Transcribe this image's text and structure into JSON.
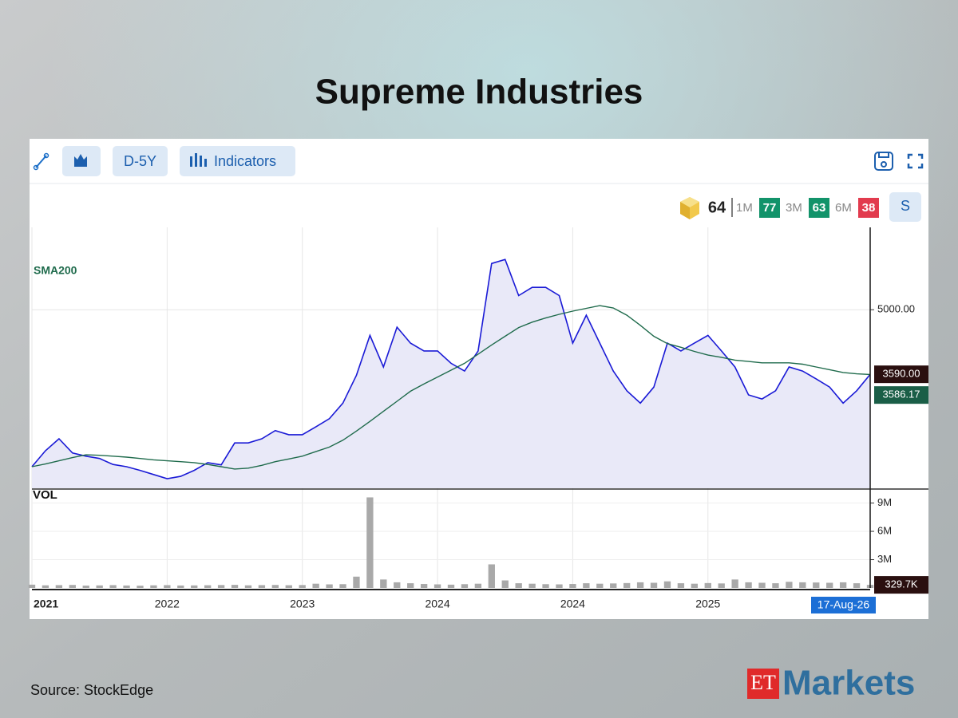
{
  "title": "Supreme Industries",
  "toolbar": {
    "buttons": [
      "D-5Y",
      "Indicators"
    ]
  },
  "score_widget": {
    "score": 64,
    "periods": [
      {
        "label": "1M",
        "value": 77,
        "color": "#12936a"
      },
      {
        "label": "3M",
        "value": 63,
        "color": "#12936a"
      },
      {
        "label": "6M",
        "value": 38,
        "color": "#e23b4e"
      }
    ],
    "button": "S"
  },
  "chart_data": [
    {
      "type": "line",
      "xlim": [
        0,
        62
      ],
      "xticks": [
        {
          "value": 0,
          "label": "2021"
        },
        {
          "value": 10,
          "label": "2022"
        },
        {
          "value": 20,
          "label": "2023"
        },
        {
          "value": 30,
          "label": "2024"
        },
        {
          "value": 40,
          "label": "2024"
        },
        {
          "value": 50,
          "label": "2025"
        }
      ],
      "x_marker": {
        "value": 62,
        "label": "17-Aug-26"
      },
      "ylim": [
        1100,
        6800
      ],
      "yticks": [
        {
          "value": 5000,
          "label": "5000.00"
        }
      ],
      "grid": true,
      "area_color": "#e9e9f8",
      "series": [
        {
          "color": "#1a1ad6",
          "last_label": "3590.00",
          "label_color": "#2a0f0f",
          "values": [
            1570,
            1920,
            2180,
            1870,
            1800,
            1750,
            1620,
            1570,
            1490,
            1400,
            1310,
            1360,
            1490,
            1660,
            1610,
            2090,
            2090,
            2180,
            2360,
            2270,
            2270,
            2440,
            2620,
            2960,
            3570,
            4440,
            3750,
            4620,
            4270,
            4100,
            4100,
            3830,
            3660,
            4100,
            6010,
            6100,
            5310,
            5490,
            5490,
            5310,
            4270,
            4880,
            4270,
            3660,
            3230,
            2960,
            3310,
            4270,
            4100,
            4270,
            4440,
            4100,
            3750,
            3140,
            3050,
            3230,
            3750,
            3660,
            3490,
            3310,
            2960,
            3230,
            3590
          ]
        },
        {
          "name": "SMA200",
          "color": "#1f6b4c",
          "last_label": "3586.17",
          "label_color": "#1a5e47",
          "values": [
            1570,
            1630,
            1700,
            1770,
            1830,
            1820,
            1800,
            1780,
            1750,
            1720,
            1700,
            1680,
            1660,
            1620,
            1570,
            1520,
            1540,
            1600,
            1680,
            1740,
            1800,
            1900,
            2000,
            2150,
            2350,
            2560,
            2780,
            3000,
            3220,
            3380,
            3530,
            3680,
            3830,
            4030,
            4230,
            4420,
            4610,
            4730,
            4820,
            4900,
            4970,
            5030,
            5090,
            5040,
            4880,
            4660,
            4420,
            4260,
            4180,
            4090,
            4010,
            3960,
            3900,
            3870,
            3840,
            3840,
            3840,
            3810,
            3750,
            3690,
            3630,
            3600,
            3586.17
          ]
        }
      ]
    },
    {
      "type": "bar",
      "label": "VOL",
      "color": "#a9a9a9",
      "xlim": [
        0,
        62
      ],
      "ylim": [
        0,
        10400000
      ],
      "yticks": [
        {
          "value": 3000000,
          "label": "3M"
        },
        {
          "value": 6000000,
          "label": "6M"
        },
        {
          "value": 9000000,
          "label": "9M"
        }
      ],
      "last_label": "329.7K",
      "values": [
        350000,
        280000,
        300000,
        320000,
        250000,
        270000,
        300000,
        260000,
        240000,
        280000,
        300000,
        260000,
        270000,
        290000,
        310000,
        330000,
        280000,
        300000,
        320000,
        290000,
        310000,
        450000,
        380000,
        400000,
        1200000,
        9600000,
        900000,
        600000,
        500000,
        420000,
        380000,
        350000,
        400000,
        450000,
        2500000,
        800000,
        500000,
        450000,
        400000,
        380000,
        420000,
        500000,
        450000,
        480000,
        520000,
        600000,
        550000,
        700000,
        500000,
        450000,
        520000,
        480000,
        900000,
        600000,
        550000,
        500000,
        650000,
        600000,
        580000,
        550000,
        600000,
        500000,
        329700
      ]
    }
  ],
  "source": "Source:  StockEdge",
  "brand": {
    "et": "ET",
    "markets": "Markets"
  }
}
